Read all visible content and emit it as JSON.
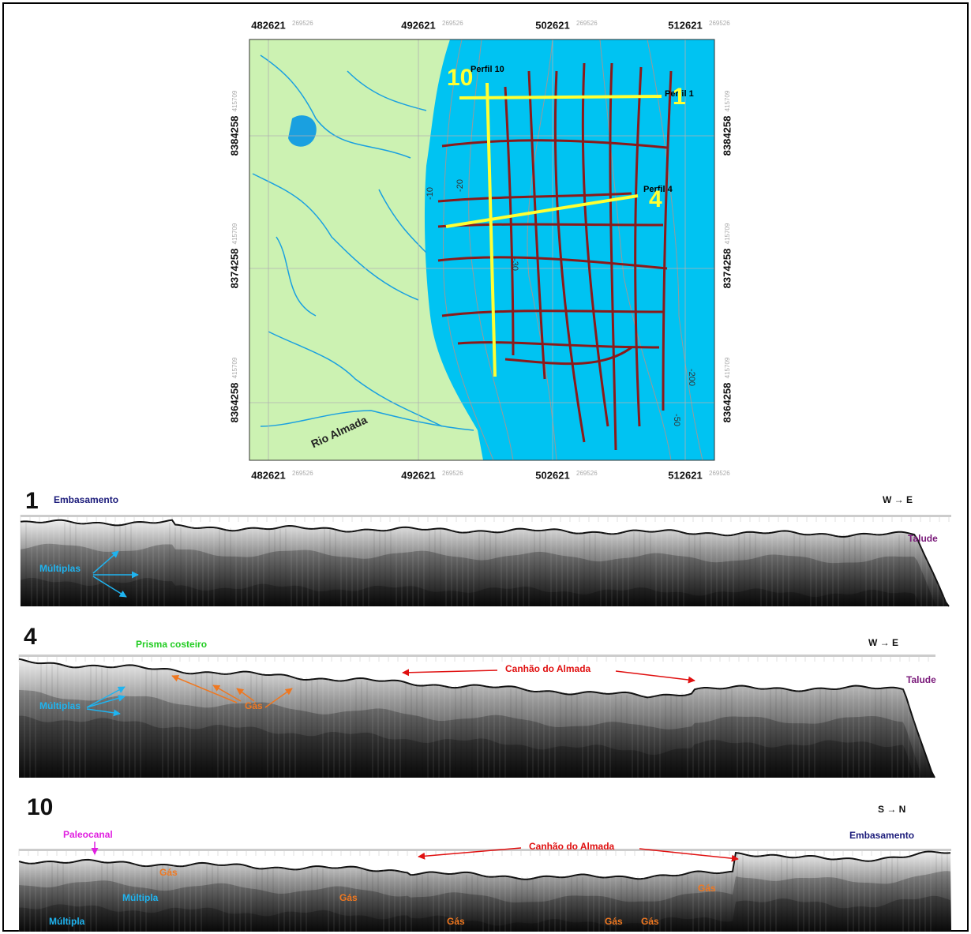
{
  "map": {
    "x_labels": [
      "482621",
      "492621",
      "502621",
      "512621"
    ],
    "x_sublabel": "269526",
    "y_labels": [
      "8384258",
      "8374258",
      "8364258"
    ],
    "y_sublabel": "415709",
    "river": "Rio Almada",
    "contours": [
      "-10",
      "-20",
      "-30",
      "-200",
      "-50"
    ],
    "profile_labels": [
      "Perfil 10",
      "Perfil 1",
      "Perfil 4"
    ],
    "profile_numbers": [
      "10",
      "1",
      "4"
    ]
  },
  "profiles": [
    {
      "number": "1",
      "direction": "W → E",
      "labels": [
        "Embasamento",
        "Talude",
        "Múltiplas"
      ]
    },
    {
      "number": "4",
      "direction": "W → E",
      "labels": [
        "Prisma costeiro",
        "Canhão do Almada",
        "Talude",
        "Múltiplas",
        "Gás"
      ]
    },
    {
      "number": "10",
      "direction": "S → N",
      "labels": [
        "Paleocanal",
        "Embasamento",
        "Canhão do Almada",
        "Gás",
        "Múltipla"
      ]
    }
  ]
}
